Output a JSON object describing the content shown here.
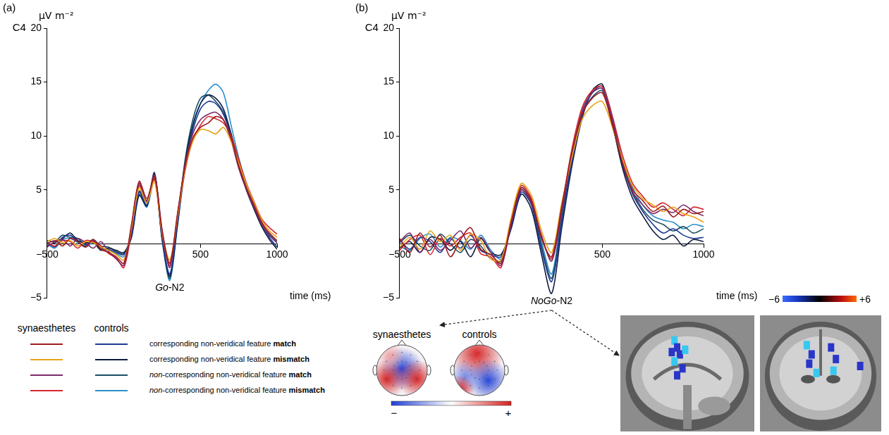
{
  "chart_data": [
    {
      "type": "line",
      "panel": "(a)",
      "channel": "C4",
      "y_label": "μV m⁻²",
      "x_label": "time (ms)",
      "annotation": "Go-N2",
      "grid": false,
      "legend": "bottom",
      "legend_groups": [
        "synaesthetes",
        "controls"
      ],
      "x": [
        -500,
        -450,
        -400,
        -350,
        -300,
        -250,
        -200,
        -150,
        -100,
        -50,
        0,
        50,
        100,
        150,
        200,
        250,
        300,
        350,
        400,
        450,
        500,
        550,
        600,
        650,
        700,
        750,
        800,
        850,
        900,
        950,
        1000
      ],
      "xlim": [
        -500,
        1000
      ],
      "xticks": [
        {
          "value": -500,
          "label": "−500"
        },
        500,
        1000
      ],
      "ylim": [
        -5,
        20
      ],
      "yticks": [
        {
          "value": -5,
          "label": "−5"
        },
        5,
        10,
        15,
        20
      ],
      "series": [
        {
          "name": "corresponding non-veridical feature match",
          "group": "synaesthetes",
          "color": "#9e1b1e",
          "values": [
            0,
            0.3,
            -0.2,
            0.5,
            0.2,
            -0.3,
            0.4,
            -0.5,
            -0.8,
            -1.2,
            -1.8,
            1.8,
            5.8,
            4.2,
            6.2,
            1.2,
            -1.8,
            2.8,
            7.2,
            9.8,
            10.8,
            11.2,
            11.8,
            11.5,
            9.8,
            7.2,
            5.2,
            3.6,
            2.0,
            1.0,
            0.3
          ]
        },
        {
          "name": "corresponding non-veridical feature mismatch",
          "group": "synaesthetes",
          "color": "#e8a317",
          "values": [
            0.2,
            0.5,
            0.1,
            0.3,
            -0.2,
            0.2,
            0.1,
            -0.3,
            -0.6,
            -1.0,
            -1.5,
            1.5,
            5.2,
            3.8,
            5.8,
            1.0,
            -1.5,
            2.5,
            7.0,
            9.5,
            10.6,
            10.5,
            10.2,
            10.8,
            9.5,
            7.5,
            5.5,
            3.8,
            2.2,
            1.2,
            0.6
          ]
        },
        {
          "name": "non-corresponding non-veridical feature match",
          "group": "synaesthetes",
          "color": "#7b2a6b",
          "values": [
            -0.3,
            0.2,
            0.4,
            -0.2,
            0.5,
            0.1,
            -0.4,
            0.2,
            -0.7,
            -1.4,
            -2.0,
            1.6,
            5.6,
            4.0,
            6.4,
            1.3,
            -2.2,
            2.6,
            7.4,
            10.2,
            11.5,
            12.0,
            12.2,
            11.5,
            9.6,
            7.0,
            5.0,
            3.4,
            1.8,
            0.8,
            0.1
          ]
        },
        {
          "name": "non-corresponding non-veridical feature mismatch",
          "group": "synaesthetes",
          "color": "#d7262c",
          "values": [
            0.1,
            -0.2,
            0.3,
            0.2,
            -0.4,
            0.3,
            0.2,
            -0.2,
            -0.9,
            -1.3,
            -2.2,
            1.2,
            5.4,
            3.9,
            6.0,
            0.9,
            -2.0,
            2.4,
            6.8,
            9.6,
            11.0,
            11.8,
            11.6,
            11.2,
            10.0,
            7.8,
            5.6,
            3.9,
            2.3,
            1.5,
            0.9
          ]
        },
        {
          "name": "corresponding non-veridical feature match",
          "group": "controls",
          "color": "#1f3a93",
          "values": [
            0.2,
            -0.3,
            0.6,
            0.8,
            0.2,
            -0.2,
            0.3,
            -0.4,
            -0.5,
            -0.8,
            -1.0,
            0.8,
            4.8,
            3.6,
            6.3,
            0.5,
            -2.8,
            2.0,
            7.2,
            10.5,
            12.5,
            13.2,
            13.0,
            12.0,
            10.0,
            7.5,
            5.2,
            3.5,
            1.8,
            0.6,
            -0.3
          ]
        },
        {
          "name": "corresponding non-veridical feature mismatch",
          "group": "controls",
          "color": "#0d1b3e",
          "values": [
            -0.2,
            0.1,
            0.5,
            1.0,
            0.3,
            0.1,
            0.2,
            -0.6,
            -0.4,
            -0.6,
            -0.8,
            0.6,
            4.5,
            3.5,
            6.5,
            0.6,
            -3.0,
            1.8,
            7.5,
            11.0,
            13.0,
            13.8,
            13.5,
            12.5,
            10.2,
            7.6,
            5.0,
            3.2,
            1.6,
            0.4,
            -0.5
          ]
        },
        {
          "name": "non-corresponding non-veridical feature match",
          "group": "controls",
          "color": "#1c4e63",
          "values": [
            0.3,
            0.2,
            0.8,
            0.6,
            0.5,
            -0.1,
            0.4,
            -0.2,
            -0.3,
            -0.7,
            -0.9,
            0.9,
            4.9,
            3.8,
            6.6,
            0.4,
            -3.2,
            2.0,
            7.8,
            11.5,
            13.5,
            13.8,
            13.2,
            12.2,
            10.2,
            7.4,
            5.0,
            3.4,
            1.8,
            0.8,
            0.1
          ]
        },
        {
          "name": "non-corresponding non-veridical feature mismatch",
          "group": "controls",
          "color": "#2a8fc8",
          "values": [
            0,
            -0.4,
            0.4,
            0.5,
            0.1,
            -0.3,
            0.1,
            -0.5,
            -0.6,
            -0.9,
            -1.2,
            0.7,
            4.6,
            3.4,
            6.0,
            0.3,
            -3.4,
            1.6,
            7.0,
            10.8,
            13.0,
            14.2,
            14.8,
            14.0,
            11.0,
            8.0,
            5.6,
            3.8,
            2.0,
            0.9,
            0.2
          ]
        }
      ]
    },
    {
      "type": "line",
      "panel": "(b)",
      "channel": "C4",
      "y_label": "μV m⁻²",
      "x_label": "time (ms)",
      "annotation": "NoGo-N2",
      "grid": false,
      "x": [
        -500,
        -450,
        -400,
        -350,
        -300,
        -250,
        -200,
        -150,
        -100,
        -50,
        0,
        50,
        100,
        150,
        200,
        250,
        300,
        350,
        400,
        450,
        500,
        550,
        600,
        650,
        700,
        750,
        800,
        850,
        900,
        950,
        1000
      ],
      "xlim": [
        -500,
        1000
      ],
      "xticks": [
        {
          "value": -500,
          "label": "−500"
        },
        500,
        1000
      ],
      "ylim": [
        -5,
        20
      ],
      "yticks": [
        {
          "value": -5,
          "label": "−5"
        },
        5,
        10,
        15,
        20
      ],
      "series": [
        {
          "name": "corresponding non-veridical feature match",
          "group": "synaesthetes",
          "color": "#9e1b1e",
          "values": [
            0.5,
            -0.8,
            1.0,
            -0.3,
            0.8,
            -1.2,
            0.4,
            1.5,
            -0.5,
            -1.0,
            -1.8,
            2.0,
            5.2,
            4.0,
            0.5,
            -1.2,
            3.5,
            8.5,
            12.0,
            13.5,
            14.0,
            11.0,
            7.5,
            5.0,
            4.0,
            3.0,
            3.5,
            2.5,
            3.2,
            2.8,
            3.0
          ]
        },
        {
          "name": "corresponding non-veridical feature mismatch",
          "group": "synaesthetes",
          "color": "#e8a317",
          "values": [
            -0.3,
            0.6,
            -0.5,
            1.2,
            0.2,
            0.8,
            -0.6,
            0.9,
            0.3,
            -1.4,
            -1.5,
            2.4,
            5.6,
            4.5,
            1.2,
            -0.8,
            3.8,
            8.0,
            11.5,
            12.8,
            13.2,
            10.8,
            7.8,
            5.4,
            4.2,
            3.6,
            3.0,
            3.4,
            2.8,
            2.5,
            2.0
          ]
        },
        {
          "name": "non-corresponding non-veridical feature match",
          "group": "synaesthetes",
          "color": "#7b2a6b",
          "values": [
            0.2,
            1.0,
            -0.8,
            0.4,
            -0.6,
            0.3,
            1.2,
            -0.4,
            0.6,
            -0.8,
            -2.0,
            1.8,
            5.0,
            3.8,
            0.8,
            -1.6,
            3.0,
            8.2,
            12.2,
            14.0,
            14.4,
            11.4,
            7.6,
            4.8,
            3.6,
            2.8,
            3.2,
            2.9,
            3.6,
            3.0,
            2.6
          ]
        },
        {
          "name": "non-corresponding non-veridical feature mismatch",
          "group": "synaesthetes",
          "color": "#d7262c",
          "values": [
            -0.6,
            0.4,
            0.8,
            -1.0,
            0.5,
            -0.2,
            0.6,
            1.0,
            -0.9,
            -1.2,
            -2.2,
            2.2,
            5.4,
            4.2,
            0.6,
            -1.4,
            3.4,
            8.8,
            12.6,
            14.2,
            14.6,
            11.8,
            8.2,
            5.6,
            4.4,
            3.4,
            3.8,
            3.2,
            2.6,
            3.4,
            3.2
          ]
        },
        {
          "name": "corresponding non-veridical feature match",
          "group": "controls",
          "color": "#1f3a93",
          "values": [
            0.4,
            -0.5,
            0.6,
            0.2,
            -0.8,
            0.5,
            -0.4,
            0.8,
            -0.6,
            -1.0,
            -1.2,
            1.6,
            4.8,
            3.6,
            -0.5,
            -3.5,
            2.0,
            7.5,
            11.8,
            14.0,
            14.6,
            11.6,
            7.4,
            4.6,
            3.0,
            1.8,
            1.0,
            1.4,
            0.8,
            0.5,
            0.6
          ]
        },
        {
          "name": "corresponding non-veridical feature mismatch",
          "group": "controls",
          "color": "#0d1b3e",
          "values": [
            -0.4,
            0.2,
            -0.8,
            0.6,
            0.4,
            -0.6,
            0.2,
            -1.2,
            0.5,
            -0.8,
            -1.0,
            1.4,
            4.6,
            3.2,
            -1.0,
            -4.6,
            1.5,
            7.2,
            11.6,
            14.2,
            14.8,
            11.2,
            7.0,
            4.2,
            2.6,
            1.2,
            0.4,
            0.8,
            -0.2,
            0.4,
            0.2
          ]
        },
        {
          "name": "non-corresponding non-veridical feature match",
          "group": "controls",
          "color": "#1c4e63",
          "values": [
            0.1,
            0.8,
            -0.2,
            -0.6,
            0.9,
            0.0,
            -0.8,
            0.4,
            -0.2,
            -1.4,
            -1.6,
            1.8,
            5.0,
            3.8,
            -0.2,
            -3.2,
            2.4,
            7.8,
            12.0,
            13.6,
            14.2,
            11.0,
            7.2,
            4.8,
            3.2,
            2.2,
            1.8,
            1.2,
            1.6,
            1.0,
            1.4
          ]
        },
        {
          "name": "non-corresponding non-veridical feature mismatch",
          "group": "controls",
          "color": "#2a8fc8",
          "values": [
            -0.2,
            -0.6,
            0.5,
            0.9,
            -0.3,
            0.6,
            0.3,
            -0.5,
            0.8,
            -0.6,
            -1.4,
            1.6,
            5.2,
            4.0,
            0.2,
            -2.8,
            2.8,
            8.2,
            12.4,
            14.0,
            14.4,
            11.8,
            7.8,
            5.2,
            3.6,
            2.6,
            2.2,
            2.0,
            1.4,
            1.8,
            1.6
          ]
        }
      ]
    }
  ],
  "topomaps": {
    "titles": [
      "synaesthetes",
      "controls"
    ],
    "scale_labels": [
      "−",
      "+"
    ]
  },
  "brain_colorbar": {
    "range": [
      -6,
      6
    ],
    "ticks": [
      {
        "value": -6,
        "label": "−6"
      },
      {
        "value": 6,
        "label": "+6"
      }
    ]
  }
}
